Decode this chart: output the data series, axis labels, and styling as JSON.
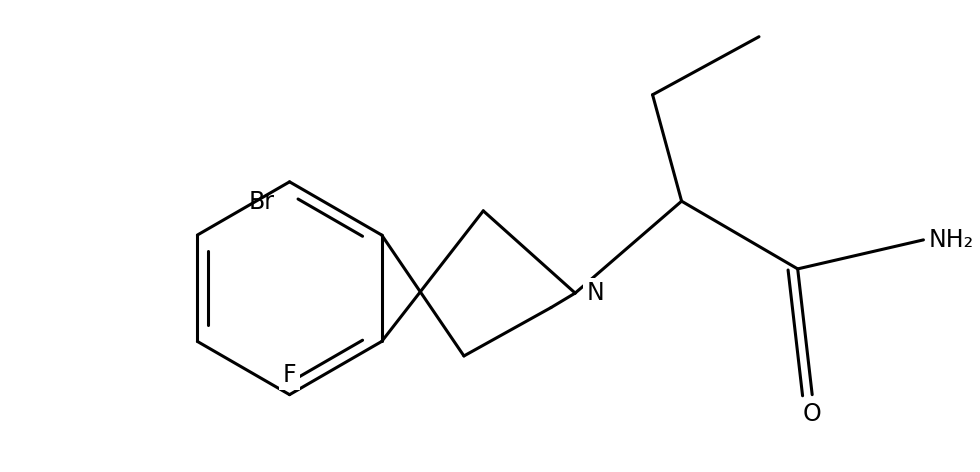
{
  "background_color": "#ffffff",
  "line_color": "#000000",
  "line_width": 2.2,
  "font_size": 17,
  "label_F": "F",
  "label_Br": "Br",
  "label_N": "N",
  "label_O": "O",
  "label_NH2": "NH₂"
}
